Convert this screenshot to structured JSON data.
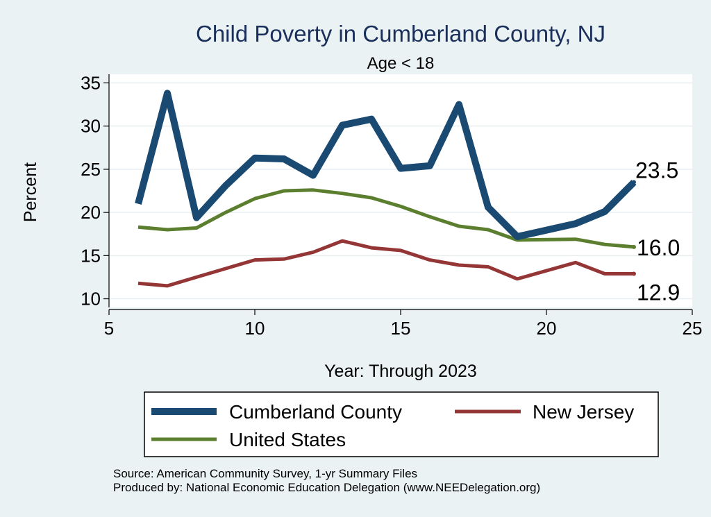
{
  "chart_data": {
    "type": "line",
    "title": "Child Poverty in Cumberland County, NJ",
    "subtitle": "Age < 18",
    "xlabel": "Year: Through 2023",
    "ylabel": "Percent",
    "xlim": [
      5,
      25
    ],
    "ylim": [
      9,
      36
    ],
    "xticks": [
      5,
      10,
      15,
      20,
      25
    ],
    "yticks": [
      10,
      15,
      20,
      25,
      30,
      35
    ],
    "grid": "horizontal",
    "series": [
      {
        "name": "Cumberland County",
        "color": "#1a4a72",
        "x": [
          6,
          7,
          8,
          9,
          10,
          11,
          12,
          13,
          14,
          15,
          16,
          17,
          18,
          19,
          21,
          22,
          23
        ],
        "y": [
          21.0,
          33.8,
          19.4,
          23.1,
          26.3,
          26.2,
          24.3,
          30.1,
          30.8,
          25.1,
          25.4,
          32.5,
          20.6,
          17.2,
          18.7,
          20.1,
          23.5
        ],
        "end_label": "23.5"
      },
      {
        "name": "New Jersey",
        "color": "#953636",
        "x": [
          6,
          7,
          8,
          9,
          10,
          11,
          12,
          13,
          14,
          15,
          16,
          17,
          18,
          19,
          21,
          22,
          23
        ],
        "y": [
          11.8,
          11.5,
          12.5,
          13.5,
          14.5,
          14.6,
          15.4,
          16.7,
          15.9,
          15.6,
          14.5,
          13.9,
          13.7,
          12.3,
          14.2,
          12.9,
          12.9
        ],
        "end_label": "12.9"
      },
      {
        "name": "United States",
        "color": "#5b7f2e",
        "x": [
          6,
          7,
          8,
          9,
          10,
          11,
          12,
          13,
          14,
          15,
          16,
          17,
          18,
          19,
          21,
          22,
          23
        ],
        "y": [
          18.3,
          18.0,
          18.2,
          20.0,
          21.6,
          22.5,
          22.6,
          22.2,
          21.7,
          20.7,
          19.5,
          18.4,
          18.0,
          16.8,
          16.9,
          16.3,
          16.0
        ],
        "end_label": "16.0"
      }
    ],
    "legend": {
      "entries": [
        "Cumberland County",
        "New Jersey",
        "United States"
      ],
      "placement": "bottom"
    }
  },
  "source_line": "Source: American Community Survey, 1-yr Summary Files",
  "produced_line": "Produced by: National Economic Education Delegation (www.NEEDelegation.org)"
}
